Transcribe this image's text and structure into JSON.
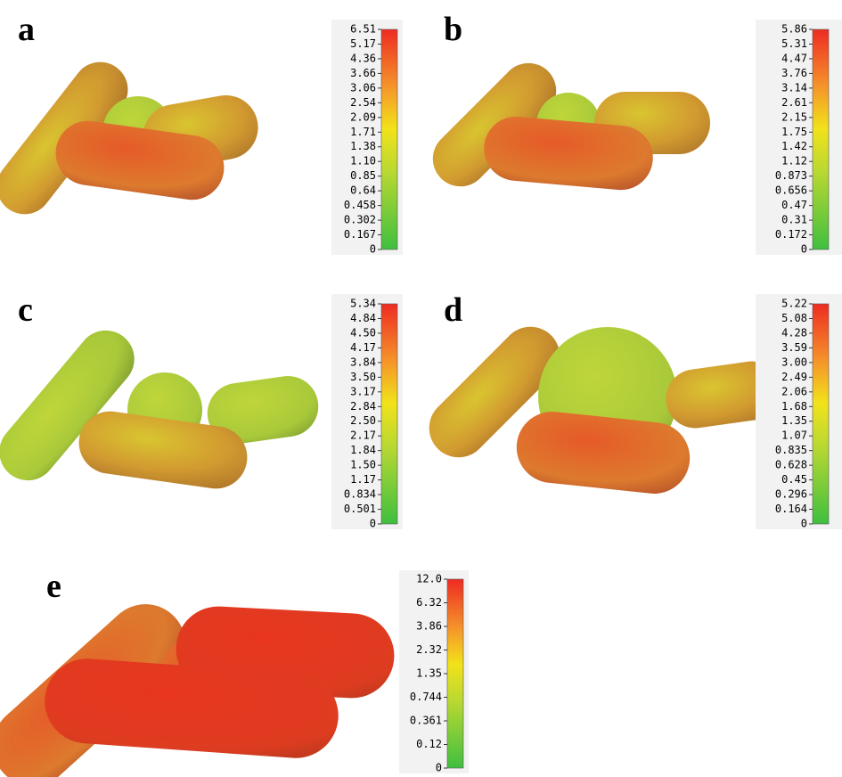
{
  "panels": [
    {
      "label": "a",
      "colorbar_labels": [
        "6.51",
        "5.17",
        "4.36",
        "3.66",
        "3.06",
        "2.54",
        "2.09",
        "1.71",
        "1.38",
        "1.10",
        "0.85",
        "0.64",
        "0.458",
        "0.302",
        "0.167",
        "0"
      ]
    },
    {
      "label": "b",
      "colorbar_labels": [
        "5.86",
        "5.31",
        "4.47",
        "3.76",
        "3.14",
        "2.61",
        "2.15",
        "1.75",
        "1.42",
        "1.12",
        "0.873",
        "0.656",
        "0.47",
        "0.31",
        "0.172",
        "0"
      ]
    },
    {
      "label": "c",
      "colorbar_labels": [
        "5.34",
        "4.84",
        "4.50",
        "4.17",
        "3.84",
        "3.50",
        "3.17",
        "2.84",
        "2.50",
        "2.17",
        "1.84",
        "1.50",
        "1.17",
        "0.834",
        "0.501",
        "0"
      ]
    },
    {
      "label": "d",
      "colorbar_labels": [
        "5.22",
        "5.08",
        "4.28",
        "3.59",
        "3.00",
        "2.49",
        "2.06",
        "1.68",
        "1.35",
        "1.07",
        "0.835",
        "0.628",
        "0.45",
        "0.296",
        "0.164",
        "0"
      ]
    },
    {
      "label": "e",
      "colorbar_labels": [
        "12.0",
        "6.32",
        "3.86",
        "2.32",
        "1.35",
        "0.744",
        "0.361",
        "0.12",
        "0"
      ]
    }
  ]
}
